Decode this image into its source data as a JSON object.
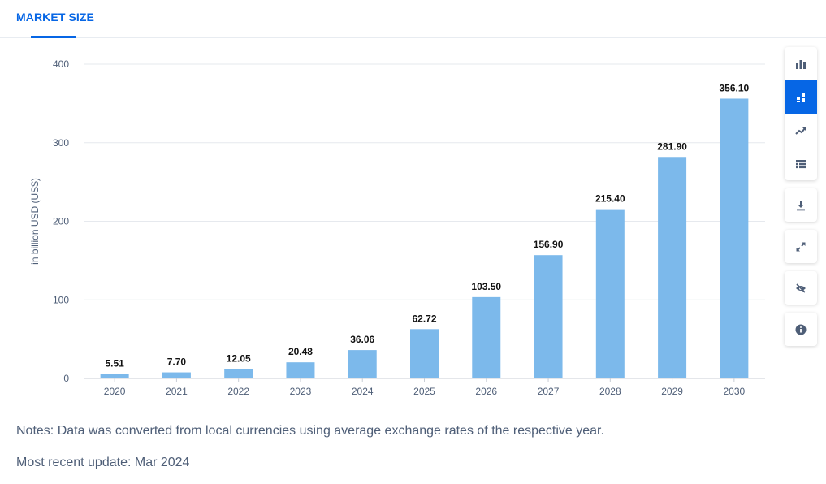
{
  "tabs": {
    "active_label": "MARKET SIZE"
  },
  "colors": {
    "accent": "#0666e5",
    "bar": "#7cb9eb",
    "grid": "#e6e9ee",
    "axis_text": "#4e5e77",
    "label_text": "#111111",
    "icon": "#4e5e77"
  },
  "chart_data": {
    "type": "bar",
    "title": "",
    "xlabel": "",
    "ylabel": "in billion USD (US$)",
    "ylim": [
      0,
      400
    ],
    "yticks": [
      0,
      100,
      200,
      300,
      400
    ],
    "categories": [
      "2020",
      "2021",
      "2022",
      "2023",
      "2024",
      "2025",
      "2026",
      "2027",
      "2028",
      "2029",
      "2030"
    ],
    "values": [
      5.51,
      7.7,
      12.05,
      20.48,
      36.06,
      62.72,
      103.5,
      156.9,
      215.4,
      281.9,
      356.1
    ],
    "value_labels": [
      "5.51",
      "7.70",
      "12.05",
      "20.48",
      "36.06",
      "62.72",
      "103.50",
      "156.90",
      "215.40",
      "281.90",
      "356.10"
    ],
    "grid": true
  },
  "toolbar": {
    "groups": [
      [
        "bar-chart-icon",
        "stacked-bar-icon",
        "trend-line-icon",
        "table-icon"
      ],
      [
        "download-icon"
      ],
      [
        "expand-icon"
      ],
      [
        "hide-icon"
      ],
      [
        "info-icon"
      ]
    ],
    "active": "stacked-bar-icon"
  },
  "notes": "Notes: Data was converted from local currencies using average exchange rates of the respective year.",
  "update": "Most recent update: Mar 2024"
}
